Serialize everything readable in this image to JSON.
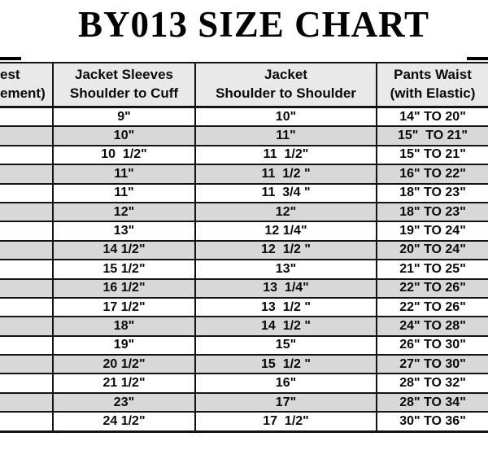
{
  "colors": {
    "background": "#ffffff",
    "border": "#141414",
    "header_bg": "#e9e9e9",
    "row_alt": "#d8d8d8",
    "text": "#000000"
  },
  "chart_data": {
    "type": "table",
    "title": "BY013 SIZE CHART",
    "header": {
      "columns": [
        {
          "line1": "est",
          "line2": "ement)"
        },
        {
          "line1": "Jacket Sleeves",
          "line2": "Shoulder to Cuff"
        },
        {
          "line1": "Jacket",
          "line2": "Shoulder to Shoulder"
        },
        {
          "line1": "Pants Waist",
          "line2": "(with Elastic)"
        }
      ]
    },
    "rows": [
      [
        "",
        "9\"",
        "10\"",
        "14\" TO 20\""
      ],
      [
        "",
        "10\"",
        "11\"",
        "15\"  TO 21\""
      ],
      [
        "",
        "10  1/2\"",
        "11  1/2\"",
        "15\" TO 21\""
      ],
      [
        "",
        "11\"",
        "11  1/2 \"",
        "16\" TO 22\""
      ],
      [
        "",
        "11\"",
        "11  3/4 \"",
        "18\" TO 23\""
      ],
      [
        "",
        "12\"",
        "12\"",
        "18\" TO 23\""
      ],
      [
        "",
        "13\"",
        "12 1/4\"",
        "19\" TO 24\""
      ],
      [
        "",
        "14 1/2\"",
        "12  1/2 \"",
        "20\" TO 24\""
      ],
      [
        "",
        "15 1/2\"",
        "13\"",
        "21\" TO 25\""
      ],
      [
        "",
        "16 1/2\"",
        "13  1/4\"",
        "22\" TO 26\""
      ],
      [
        "",
        "17 1/2\"",
        "13  1/2 \"",
        "22\" TO 26\""
      ],
      [
        "",
        "18\"",
        "14  1/2 \"",
        "24\" TO 28\""
      ],
      [
        "",
        "19\"",
        "15\"",
        "26\" TO 30\""
      ],
      [
        "",
        "20 1/2\"",
        "15  1/2 \"",
        "27\" TO 30\""
      ],
      [
        "",
        "21 1/2\"",
        "16\"",
        "28\" TO 32\""
      ],
      [
        "",
        "23\"",
        "17\"",
        "28\" TO 34\""
      ],
      [
        "",
        "24 1/2\"",
        "17  1/2\"",
        "30\" TO 36\""
      ]
    ]
  }
}
